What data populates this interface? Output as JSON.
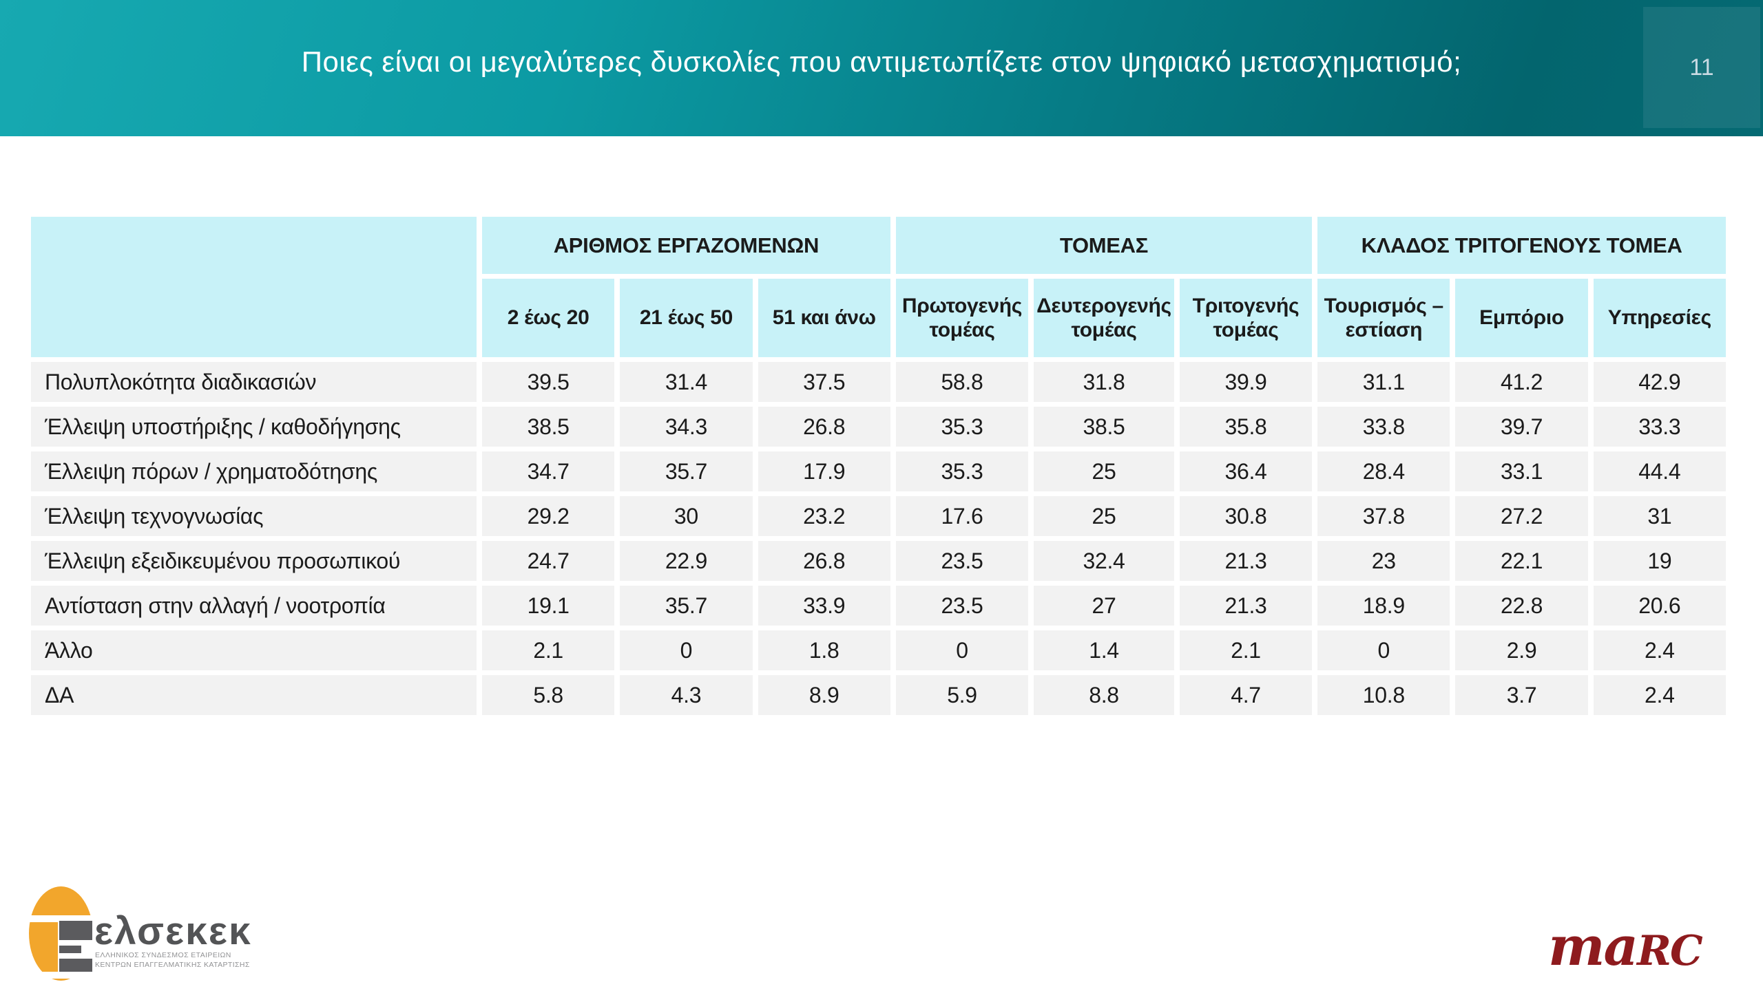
{
  "slide": {
    "title": "Ποιες είναι οι μεγαλύτερες δυσκολίες που αντιμετωπίζετε στον ψηφιακό μετασχηματισμό;",
    "page_number": "11"
  },
  "colors": {
    "header_teal_light": "#17a9b1",
    "header_teal_dark": "#03656e",
    "table_header_cyan": "#c8f2f8",
    "table_row_gray": "#f2f2f2",
    "marc_red": "#8e1b1e",
    "elsekek_orange": "#f2a62c",
    "elsekek_gray": "#5b5b5e"
  },
  "table": {
    "column_groups": [
      {
        "label": "ΑΡΙΘΜΟΣ ΕΡΓΑΖΟΜΕΝΩΝ",
        "columns": [
          "2 έως 20",
          "21 έως 50",
          "51 και άνω"
        ]
      },
      {
        "label": "ΤΟΜΕΑΣ",
        "columns": [
          "Πρωτογενής τομέας",
          "Δευτερογενής τομέας",
          "Τριτογενής τομέας"
        ]
      },
      {
        "label": "ΚΛΑΔΟΣ ΤΡΙΤΟΓΕΝΟΥΣ ΤΟΜΕΑ",
        "columns": [
          "Τουρισμός – εστίαση",
          "Εμπόριο",
          "Υπηρεσίες"
        ]
      }
    ],
    "rows": [
      {
        "label": "Πολυπλοκότητα διαδικασιών",
        "values": [
          "39.5",
          "31.4",
          "37.5",
          "58.8",
          "31.8",
          "39.9",
          "31.1",
          "41.2",
          "42.9"
        ]
      },
      {
        "label": "Έλλειψη υποστήριξης / καθοδήγησης",
        "values": [
          "38.5",
          "34.3",
          "26.8",
          "35.3",
          "38.5",
          "35.8",
          "33.8",
          "39.7",
          "33.3"
        ]
      },
      {
        "label": "Έλλειψη πόρων / χρηματοδότησης",
        "values": [
          "34.7",
          "35.7",
          "17.9",
          "35.3",
          "25",
          "36.4",
          "28.4",
          "33.1",
          "44.4"
        ]
      },
      {
        "label": "Έλλειψη τεχνογνωσίας",
        "values": [
          "29.2",
          "30",
          "23.2",
          "17.6",
          "25",
          "30.8",
          "37.8",
          "27.2",
          "31"
        ]
      },
      {
        "label": "Έλλειψη εξειδικευμένου προσωπικού",
        "values": [
          "24.7",
          "22.9",
          "26.8",
          "23.5",
          "32.4",
          "21.3",
          "23",
          "22.1",
          "19"
        ]
      },
      {
        "label": "Αντίσταση στην αλλαγή / νοοτροπία",
        "values": [
          "19.1",
          "35.7",
          "33.9",
          "23.5",
          "27",
          "21.3",
          "18.9",
          "22.8",
          "20.6"
        ]
      },
      {
        "label": "Άλλο",
        "values": [
          "2.1",
          "0",
          "1.8",
          "0",
          "1.4",
          "2.1",
          "0",
          "2.9",
          "2.4"
        ]
      },
      {
        "label": "ΔΑ",
        "values": [
          "5.8",
          "4.3",
          "8.9",
          "5.9",
          "8.8",
          "4.7",
          "10.8",
          "3.7",
          "2.4"
        ]
      }
    ]
  },
  "chart_data": {
    "type": "table",
    "title": "Ποιες είναι οι μεγαλύτερες δυσκολίες που αντιμετωπίζετε στον ψηφιακό μετασχηματισμό;",
    "column_groups": [
      "ΑΡΙΘΜΟΣ ΕΡΓΑΖΟΜΕΝΩΝ",
      "ΤΟΜΕΑΣ",
      "ΚΛΑΔΟΣ ΤΡΙΤΟΓΕΝΟΥΣ ΤΟΜΕΑ"
    ],
    "columns": [
      "2 έως 20",
      "21 έως 50",
      "51 και άνω",
      "Πρωτογενής τομέας",
      "Δευτερογενής τομέας",
      "Τριτογενής τομέας",
      "Τουρισμός – εστίαση",
      "Εμπόριο",
      "Υπηρεσίες"
    ],
    "categories": [
      "Πολυπλοκότητα διαδικασιών",
      "Έλλειψη υποστήριξης / καθοδήγησης",
      "Έλλειψη πόρων / χρηματοδότησης",
      "Έλλειψη τεχνογνωσίας",
      "Έλλειψη εξειδικευμένου προσωπικού",
      "Αντίσταση στην αλλαγή / νοοτροπία",
      "Άλλο",
      "ΔΑ"
    ],
    "values": [
      [
        39.5,
        31.4,
        37.5,
        58.8,
        31.8,
        39.9,
        31.1,
        41.2,
        42.9
      ],
      [
        38.5,
        34.3,
        26.8,
        35.3,
        38.5,
        35.8,
        33.8,
        39.7,
        33.3
      ],
      [
        34.7,
        35.7,
        17.9,
        35.3,
        25,
        36.4,
        28.4,
        33.1,
        44.4
      ],
      [
        29.2,
        30,
        23.2,
        17.6,
        25,
        30.8,
        37.8,
        27.2,
        31
      ],
      [
        24.7,
        22.9,
        26.8,
        23.5,
        32.4,
        21.3,
        23,
        22.1,
        19
      ],
      [
        19.1,
        35.7,
        33.9,
        23.5,
        27,
        21.3,
        18.9,
        22.8,
        20.6
      ],
      [
        2.1,
        0,
        1.8,
        0,
        1.4,
        2.1,
        0,
        2.9,
        2.4
      ],
      [
        5.8,
        4.3,
        8.9,
        5.9,
        8.8,
        4.7,
        10.8,
        3.7,
        2.4
      ]
    ]
  },
  "footer": {
    "left_logo": {
      "wordmark": "ελσεκεκ",
      "subtext_line1": "ΕΛΛΗΝΙΚΟΣ ΣΥΝΔΕΣΜΟΣ ΕΤΑΙΡΕΙΩΝ",
      "subtext_line2": "ΚΕΝΤΡΩΝ ΕΠΑΓΓΕΛΜΑΤΙΚΗΣ ΚΑΤΑΡΤΙΣΗΣ"
    },
    "right_logo": {
      "text_lower": "ma",
      "text_caps": "RC"
    }
  }
}
